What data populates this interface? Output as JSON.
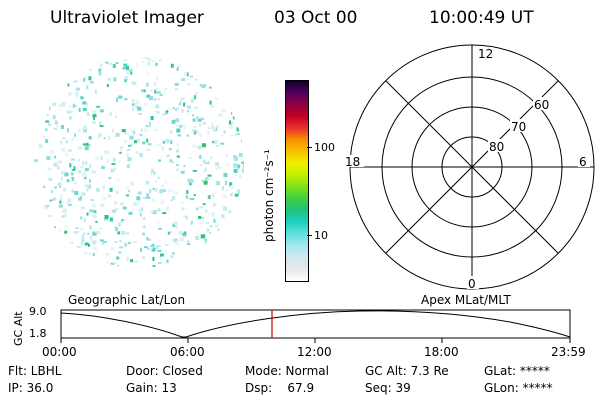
{
  "header": {
    "title": "Ultraviolet Imager",
    "date": "03 Oct 00",
    "time": "10:00:49 UT"
  },
  "colorbar": {
    "unit_label": "photon cm⁻²s⁻¹",
    "ticks": [
      "100",
      "10"
    ],
    "colors": [
      "#ffffff",
      "#e8e8e8",
      "#d0e8f0",
      "#a8e8f0",
      "#60e0e0",
      "#20d0c0",
      "#20c080",
      "#40d040",
      "#80e020",
      "#c0f000",
      "#f0f000",
      "#f8c000",
      "#f89000",
      "#e83030",
      "#c00020",
      "#900040",
      "#500060",
      "#100030"
    ]
  },
  "polar": {
    "labels": {
      "top": "12",
      "bottom": "0",
      "left": "18",
      "right": "6",
      "lat60": "60",
      "lat70": "70",
      "lat80": "80"
    }
  },
  "timeline": {
    "left_label": "Geographic Lat/Lon",
    "right_label": "Apex MLat/MLT",
    "y_label": "GC Alt",
    "y_top": "9.0",
    "y_bottom": "1.8",
    "ticks": [
      "00:00",
      "06:00",
      "12:00",
      "18:00",
      "23:59"
    ],
    "marker_color": "#cc0000"
  },
  "footer": {
    "row1": {
      "flt": "Flt: LBHL",
      "door": "Door: Closed",
      "mode": "Mode: Normal",
      "gcalt": "GC Alt: 7.3 Re",
      "glat": "GLat: *****"
    },
    "row2": {
      "ip": "IP: 36.0",
      "gain": "Gain: 13",
      "dsp": "Dsp:    67.9",
      "seq": "Seq: 39",
      "glon": "GLon: *****"
    }
  }
}
